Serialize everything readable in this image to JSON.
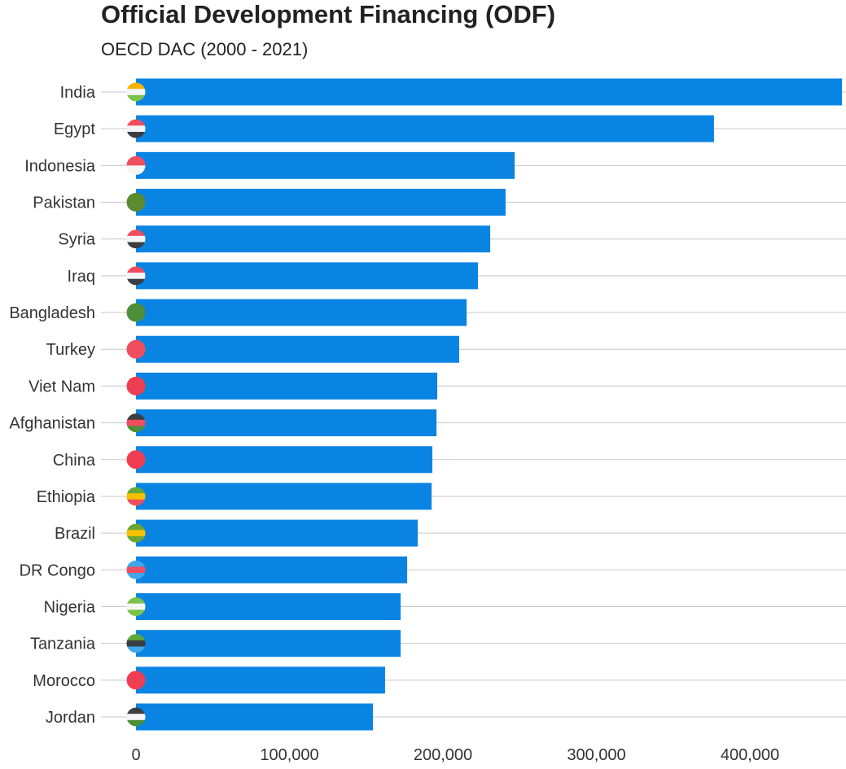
{
  "chart_data": {
    "type": "bar",
    "orientation": "horizontal",
    "title": "Official Development Financing (ODF)",
    "subtitle": "OECD DAC (2000 - 2021)",
    "xlabel": "",
    "ylabel": "",
    "xlim": [
      0,
      462000
    ],
    "x_ticks": [
      0,
      100000,
      200000,
      300000,
      400000
    ],
    "x_tick_labels": [
      "0",
      "100,000",
      "200,000",
      "300,000",
      "400,000"
    ],
    "grid": "horizontal at categories",
    "bar_color": "#0a84e3",
    "categories": [
      "India",
      "Egypt",
      "Indonesia",
      "Pakistan",
      "Syria",
      "Iraq",
      "Bangladesh",
      "Turkey",
      "Viet Nam",
      "Afghanistan",
      "China",
      "Ethiopia",
      "Brazil",
      "DR Congo",
      "Nigeria",
      "Tanzania",
      "Morocco",
      "Jordan"
    ],
    "values": [
      460000,
      376600,
      246700,
      240800,
      230800,
      222800,
      215400,
      210600,
      196300,
      195800,
      193100,
      192600,
      183600,
      176700,
      172400,
      172400,
      162300,
      154400
    ],
    "flag_colors": [
      [
        "#f5b400",
        "#f5f5f5",
        "#7dc24b"
      ],
      [
        "#ef4e5e",
        "#f5f5f5",
        "#3a3d42"
      ],
      [
        "#ef4e5e",
        "#f5f5f5"
      ],
      [
        "#5c8a2e",
        "#5c8a2e"
      ],
      [
        "#ef4e5e",
        "#f5f5f5",
        "#3a3d42"
      ],
      [
        "#ef4e5e",
        "#f5f5f5",
        "#3a3d42"
      ],
      [
        "#4e8f3a",
        "#4e8f3a"
      ],
      [
        "#ef4e5e",
        "#ef4e5e"
      ],
      [
        "#ef3e52",
        "#ef3e52"
      ],
      [
        "#3a3d42",
        "#ef4e5e",
        "#4e8f3a"
      ],
      [
        "#ef3e52",
        "#ef3e52"
      ],
      [
        "#5fa83c",
        "#f5c000",
        "#ef4e5e"
      ],
      [
        "#6ca534",
        "#f5c000",
        "#6ca534"
      ],
      [
        "#3fa9e8",
        "#ef4e5e",
        "#3fa9e8"
      ],
      [
        "#7dc24b",
        "#f5f5f5",
        "#7dc24b"
      ],
      [
        "#5fa83c",
        "#3a3d42",
        "#3fa9e8"
      ],
      [
        "#ef3e52",
        "#ef3e52"
      ],
      [
        "#3a3d42",
        "#f5f5f5",
        "#4e8f3a"
      ]
    ]
  }
}
